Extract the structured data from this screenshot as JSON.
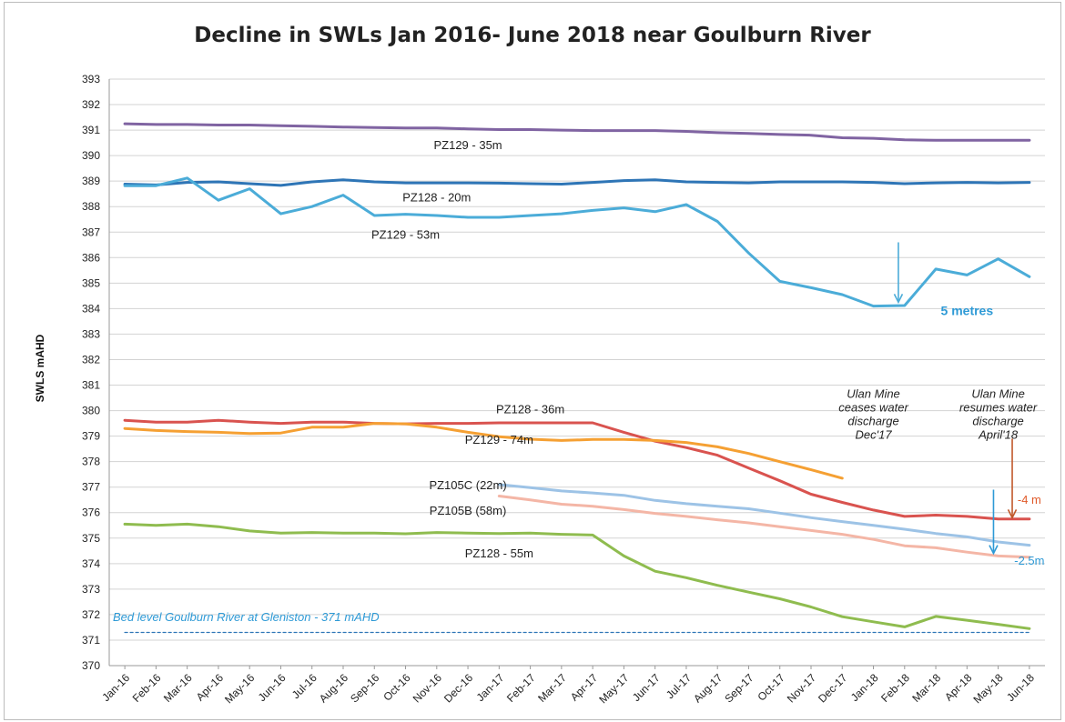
{
  "chart_data": {
    "type": "line",
    "title": "Decline in SWLs Jan 2016- June 2018 near Goulburn River",
    "ylabel": "SWLS mAHD",
    "xlabel": "",
    "ylim": [
      370,
      393
    ],
    "yticks": [
      370,
      371,
      372,
      373,
      374,
      375,
      376,
      377,
      378,
      379,
      380,
      381,
      382,
      383,
      384,
      385,
      386,
      387,
      388,
      389,
      390,
      391,
      392,
      393
    ],
    "categories": [
      "Jan-16",
      "Feb-16",
      "Mar-16",
      "Apr-16",
      "May-16",
      "Jun-16",
      "Jul-16",
      "Aug-16",
      "Sep-16",
      "Oct-16",
      "Nov-16",
      "Dec-16",
      "Jan-17",
      "Feb-17",
      "Mar-17",
      "Apr-17",
      "May-17",
      "Jun-17",
      "Jul-17",
      "Aug-17",
      "Sep-17",
      "Oct-17",
      "Nov-17",
      "Dec-17",
      "Jan-18",
      "Feb-18",
      "Mar-18",
      "Apr-18",
      "May-18",
      "Jun-18"
    ],
    "grid": true,
    "series": [
      {
        "name": "PZ129 - 35m",
        "color": "#8064a2",
        "values": [
          391.25,
          391.22,
          391.22,
          391.2,
          391.2,
          391.17,
          391.15,
          391.12,
          391.1,
          391.08,
          391.08,
          391.05,
          391.02,
          391.02,
          391.0,
          390.98,
          390.98,
          390.98,
          390.95,
          390.9,
          390.87,
          390.83,
          390.8,
          390.7,
          390.68,
          390.62,
          390.6,
          390.6,
          390.6,
          390.6
        ]
      },
      {
        "name": "PZ128 - 20m",
        "color": "#2e75b6",
        "values": [
          388.88,
          388.85,
          388.95,
          388.97,
          388.9,
          388.83,
          388.97,
          389.05,
          388.97,
          388.93,
          388.93,
          388.93,
          388.92,
          388.9,
          388.88,
          388.95,
          389.02,
          389.05,
          388.97,
          388.95,
          388.93,
          388.97,
          388.97,
          388.97,
          388.95,
          388.9,
          388.93,
          388.95,
          388.93,
          388.95
        ]
      },
      {
        "name": "PZ129 - 53m",
        "color": "#4bacd8",
        "values": [
          388.82,
          388.82,
          389.12,
          388.25,
          388.7,
          387.72,
          388.0,
          388.45,
          387.65,
          387.7,
          387.65,
          387.58,
          387.58,
          387.65,
          387.72,
          387.85,
          387.95,
          387.8,
          388.08,
          387.42,
          386.18,
          385.07,
          384.82,
          384.55,
          384.1,
          384.12,
          385.55,
          385.32,
          385.95,
          385.25
        ]
      },
      {
        "name": "PZ128 - 36m",
        "color": "#d9534f",
        "values": [
          379.62,
          379.55,
          379.55,
          379.62,
          379.55,
          379.5,
          379.55,
          379.55,
          379.5,
          379.48,
          379.5,
          379.5,
          379.52,
          379.52,
          379.52,
          379.52,
          379.15,
          378.8,
          378.55,
          378.25,
          377.75,
          377.25,
          376.72,
          376.4,
          376.1,
          375.85,
          375.9,
          375.85,
          375.75,
          375.75
        ]
      },
      {
        "name": "PZ129 - 74m",
        "color": "#f5a033",
        "values": [
          379.3,
          379.22,
          379.18,
          379.15,
          379.1,
          379.12,
          379.35,
          379.35,
          379.5,
          379.48,
          379.35,
          379.15,
          378.98,
          378.88,
          378.83,
          378.87,
          378.87,
          378.83,
          378.75,
          378.58,
          378.32,
          378.0,
          377.68,
          377.35,
          null,
          null,
          null,
          null,
          null,
          null
        ]
      },
      {
        "name": "PZ105C (22m)",
        "color": "#9dc3e6",
        "values": [
          null,
          null,
          null,
          null,
          null,
          null,
          null,
          null,
          null,
          null,
          null,
          null,
          377.1,
          376.98,
          376.85,
          376.77,
          376.68,
          376.48,
          376.35,
          376.25,
          376.15,
          375.98,
          375.8,
          375.65,
          375.5,
          375.35,
          375.18,
          375.05,
          374.85,
          374.72
        ]
      },
      {
        "name": "PZ105B (58m)",
        "color": "#f4b6a6",
        "values": [
          null,
          null,
          null,
          null,
          null,
          null,
          null,
          null,
          null,
          null,
          null,
          null,
          376.65,
          376.5,
          376.33,
          376.25,
          376.12,
          375.97,
          375.85,
          375.72,
          375.6,
          375.45,
          375.3,
          375.15,
          374.95,
          374.7,
          374.62,
          374.45,
          374.3,
          374.25
        ]
      },
      {
        "name": "PZ128 - 55m",
        "color": "#8fbc4f",
        "values": [
          375.55,
          375.5,
          375.55,
          375.45,
          375.28,
          375.2,
          375.22,
          375.2,
          375.2,
          375.17,
          375.22,
          375.2,
          375.18,
          375.2,
          375.15,
          375.12,
          374.3,
          373.7,
          373.45,
          373.15,
          372.88,
          372.62,
          372.3,
          371.92,
          371.72,
          371.52,
          371.93,
          371.78,
          371.62,
          371.45
        ]
      },
      {
        "name": "Bed level Goulburn River at Gleniston - 371 mAHD",
        "color": "#2e75b6",
        "style": "dashed",
        "values": [
          371.3,
          371.3,
          371.3,
          371.3,
          371.3,
          371.3,
          371.3,
          371.3,
          371.3,
          371.3,
          371.3,
          371.3,
          371.3,
          371.3,
          371.3,
          371.3,
          371.3,
          371.3,
          371.3,
          371.3,
          371.3,
          371.3,
          371.3,
          371.3,
          371.3,
          371.3,
          371.3,
          371.3,
          371.3,
          371.3
        ]
      }
    ],
    "series_labels": [
      {
        "text": "PZ129 - 35m",
        "x": "Dec-16",
        "y": 390.25
      },
      {
        "text": "PZ128 - 20m",
        "x": "Nov-16",
        "y": 388.2
      },
      {
        "text": "PZ129 - 53m",
        "x": "Oct-16",
        "y": 386.75
      },
      {
        "text": "PZ128 - 36m",
        "x": "Feb-17",
        "y": 379.9
      },
      {
        "text": "PZ129 - 74m",
        "x": "Jan-17",
        "y": 378.7
      },
      {
        "text": "PZ105C (22m)",
        "x": "Dec-16",
        "y": 376.92
      },
      {
        "text": "PZ105B (58m)",
        "x": "Dec-16",
        "y": 375.92
      },
      {
        "text": "PZ128 - 55m",
        "x": "Jan-17",
        "y": 374.25
      }
    ],
    "annotations": [
      {
        "text": "5 metres",
        "color": "#2e9ad6",
        "bold": true,
        "x": "Apr-18",
        "y": 383.75
      },
      {
        "text": "-4 m",
        "color": "#e05a2a",
        "x": "Jun-18",
        "y": 376.35
      },
      {
        "text": "-2.5m",
        "color": "#2e9ad6",
        "x": "Jun-18",
        "y": 373.95
      },
      {
        "lines": [
          "Ulan Mine",
          "ceases water",
          "discharge",
          "Dec'17"
        ],
        "x": "Jan-18",
        "y": 380.5
      },
      {
        "lines": [
          "Ulan Mine",
          "resumes water",
          "discharge",
          "April'18"
        ],
        "x": "May-18",
        "y": 380.5
      },
      {
        "text": "Bed level Goulburn River at Gleniston - 371 mAHD",
        "color": "#2e9ad6",
        "italic": true,
        "x": "Jan-16",
        "y": 371.75
      }
    ],
    "arrows": [
      {
        "color": "#4bacd8",
        "x": "Feb-18",
        "x_offset": -0.2,
        "y_from": 386.6,
        "y_to": 384.25
      },
      {
        "color": "#c0582a",
        "x": "Jun-18",
        "x_offset": -0.55,
        "y_from": 378.9,
        "y_to": 375.8
      },
      {
        "color": "#2e9ad6",
        "x": "May-18",
        "x_offset": -0.15,
        "y_from": 376.9,
        "y_to": 374.4
      }
    ]
  }
}
